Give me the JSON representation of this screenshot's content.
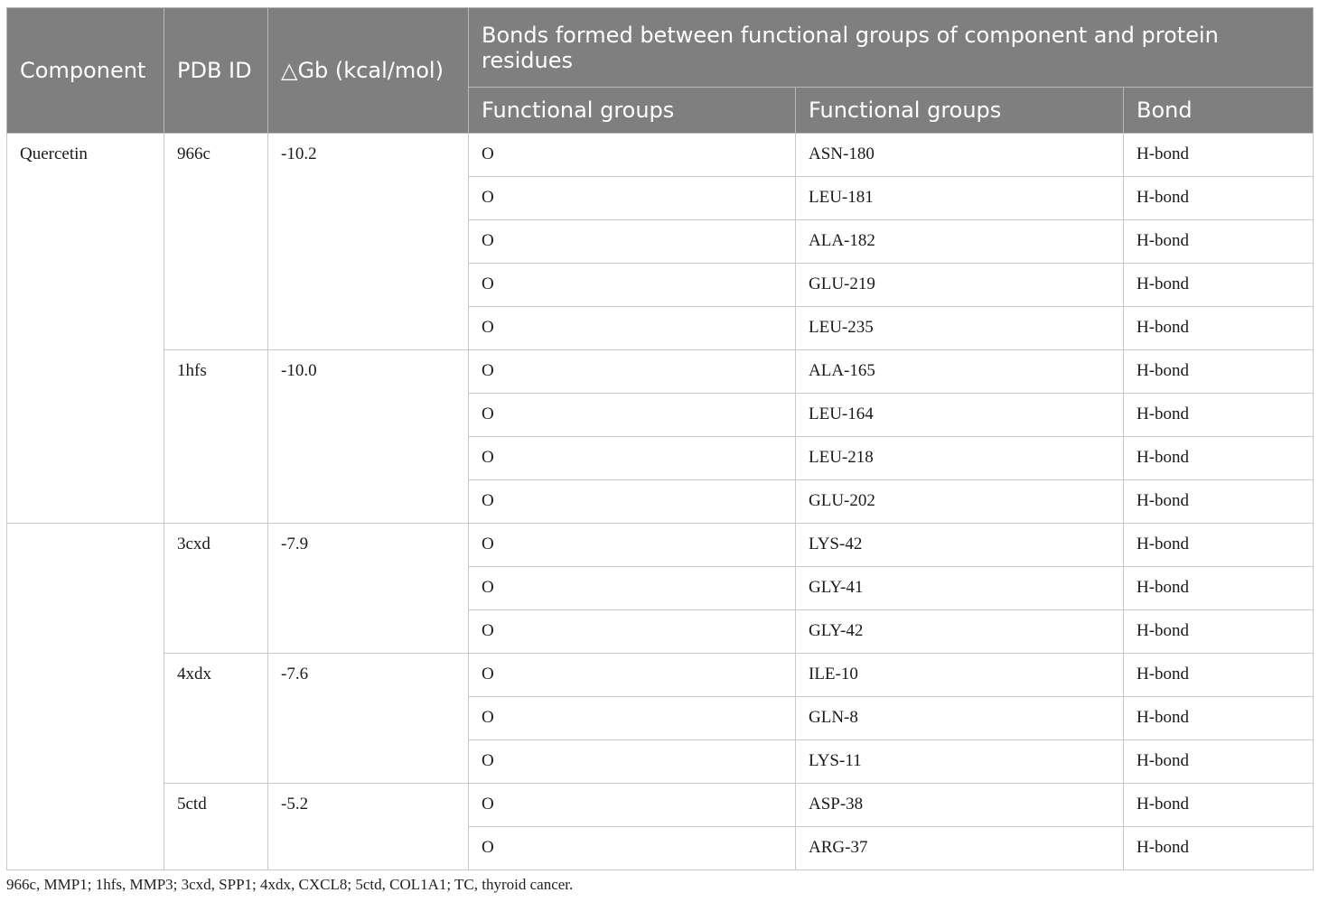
{
  "headers": {
    "component": "Component",
    "pdb_id": "PDB ID",
    "dgb": "△Gb (kcal/mol)",
    "group_title": "Bonds formed between functional groups of component and protein residues",
    "sub_fg1": "Functional groups",
    "sub_fg2": "Functional groups",
    "sub_bond": "Bond"
  },
  "component_name": "Quercetin",
  "blocks": [
    {
      "pdb": "966c",
      "dgb": "-10.2",
      "rows": [
        {
          "fg1": "O",
          "fg2": "ASN-180",
          "bond": "H-bond"
        },
        {
          "fg1": "O",
          "fg2": "LEU-181",
          "bond": "H-bond"
        },
        {
          "fg1": "O",
          "fg2": "ALA-182",
          "bond": "H-bond"
        },
        {
          "fg1": "O",
          "fg2": "GLU-219",
          "bond": "H-bond"
        },
        {
          "fg1": "O",
          "fg2": "LEU-235",
          "bond": "H-bond"
        }
      ]
    },
    {
      "pdb": "1hfs",
      "dgb": "-10.0",
      "rows": [
        {
          "fg1": "O",
          "fg2": "ALA-165",
          "bond": "H-bond"
        },
        {
          "fg1": "O",
          "fg2": "LEU-164",
          "bond": "H-bond"
        },
        {
          "fg1": "O",
          "fg2": "LEU-218",
          "bond": "H-bond"
        },
        {
          "fg1": "O",
          "fg2": "GLU-202",
          "bond": "H-bond"
        }
      ]
    },
    {
      "pdb": "3cxd",
      "dgb": "-7.9",
      "rows": [
        {
          "fg1": "O",
          "fg2": "LYS-42",
          "bond": "H-bond"
        },
        {
          "fg1": "O",
          "fg2": "GLY-41",
          "bond": "H-bond"
        },
        {
          "fg1": "O",
          "fg2": "GLY-42",
          "bond": "H-bond"
        }
      ]
    },
    {
      "pdb": "4xdx",
      "dgb": "-7.6",
      "rows": [
        {
          "fg1": "O",
          "fg2": "ILE-10",
          "bond": "H-bond"
        },
        {
          "fg1": "O",
          "fg2": "GLN-8",
          "bond": "H-bond"
        },
        {
          "fg1": "O",
          "fg2": "LYS-11",
          "bond": "H-bond"
        }
      ]
    },
    {
      "pdb": "5ctd",
      "dgb": "-5.2",
      "rows": [
        {
          "fg1": "O",
          "fg2": "ASP-38",
          "bond": "H-bond"
        },
        {
          "fg1": "O",
          "fg2": "ARG-37",
          "bond": "H-bond"
        }
      ]
    }
  ],
  "footnote": "966c, MMP1; 1hfs, MMP3; 3cxd, SPP1; 4xdx, CXCL8; 5ctd, COL1A1; TC, thyroid cancer."
}
